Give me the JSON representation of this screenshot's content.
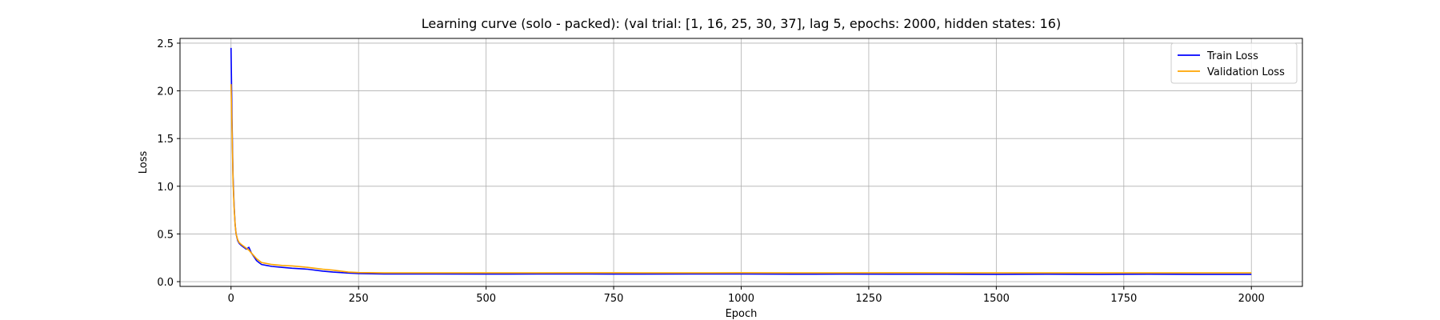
{
  "chart_data": {
    "type": "line",
    "title": "Learning curve (solo - packed): (val trial: [1, 16, 25, 30, 37], lag 5, epochs: 2000, hidden states: 16)",
    "xlabel": "Epoch",
    "ylabel": "Loss",
    "xlim": [
      -100,
      2100
    ],
    "ylim": [
      -0.05,
      2.55
    ],
    "xticks": [
      0,
      250,
      500,
      750,
      1000,
      1250,
      1500,
      1750,
      2000
    ],
    "xtick_labels": [
      "0",
      "250",
      "500",
      "750",
      "1000",
      "1250",
      "1500",
      "1750",
      "2000"
    ],
    "yticks": [
      0.0,
      0.5,
      1.0,
      1.5,
      2.0,
      2.5
    ],
    "ytick_labels": [
      "0.0",
      "0.5",
      "1.0",
      "1.5",
      "2.0",
      "2.5"
    ],
    "grid": true,
    "legend_position": "top-right",
    "series": [
      {
        "name": "Train Loss",
        "color": "#0000ff",
        "x": [
          0,
          2,
          4,
          6,
          8,
          10,
          13,
          16,
          20,
          25,
          30,
          35,
          40,
          45,
          50,
          55,
          60,
          70,
          80,
          100,
          120,
          150,
          180,
          200,
          230,
          250,
          300,
          400,
          500,
          600,
          700,
          800,
          900,
          1000,
          1100,
          1200,
          1300,
          1400,
          1500,
          1600,
          1700,
          1800,
          1900,
          2000
        ],
        "y": [
          2.45,
          1.7,
          1.1,
          0.8,
          0.6,
          0.5,
          0.43,
          0.4,
          0.38,
          0.36,
          0.34,
          0.36,
          0.3,
          0.26,
          0.22,
          0.2,
          0.18,
          0.17,
          0.16,
          0.15,
          0.14,
          0.13,
          0.11,
          0.1,
          0.09,
          0.085,
          0.08,
          0.08,
          0.079,
          0.08,
          0.08,
          0.079,
          0.08,
          0.08,
          0.078,
          0.079,
          0.078,
          0.078,
          0.077,
          0.078,
          0.077,
          0.078,
          0.077,
          0.077
        ]
      },
      {
        "name": "Validation Loss",
        "color": "#ffa500",
        "x": [
          0,
          2,
          4,
          6,
          8,
          10,
          13,
          16,
          20,
          25,
          30,
          35,
          40,
          45,
          50,
          55,
          60,
          70,
          80,
          100,
          120,
          150,
          180,
          200,
          230,
          250,
          300,
          400,
          500,
          600,
          700,
          800,
          900,
          1000,
          1100,
          1200,
          1300,
          1400,
          1500,
          1600,
          1700,
          1800,
          1900,
          2000
        ],
        "y": [
          2.07,
          1.6,
          1.05,
          0.78,
          0.6,
          0.5,
          0.44,
          0.41,
          0.39,
          0.37,
          0.35,
          0.33,
          0.3,
          0.27,
          0.24,
          0.22,
          0.2,
          0.19,
          0.18,
          0.17,
          0.165,
          0.15,
          0.13,
          0.12,
          0.1,
          0.095,
          0.092,
          0.092,
          0.092,
          0.092,
          0.093,
          0.092,
          0.092,
          0.093,
          0.092,
          0.092,
          0.093,
          0.092,
          0.092,
          0.092,
          0.092,
          0.092,
          0.092,
          0.092
        ]
      }
    ]
  }
}
